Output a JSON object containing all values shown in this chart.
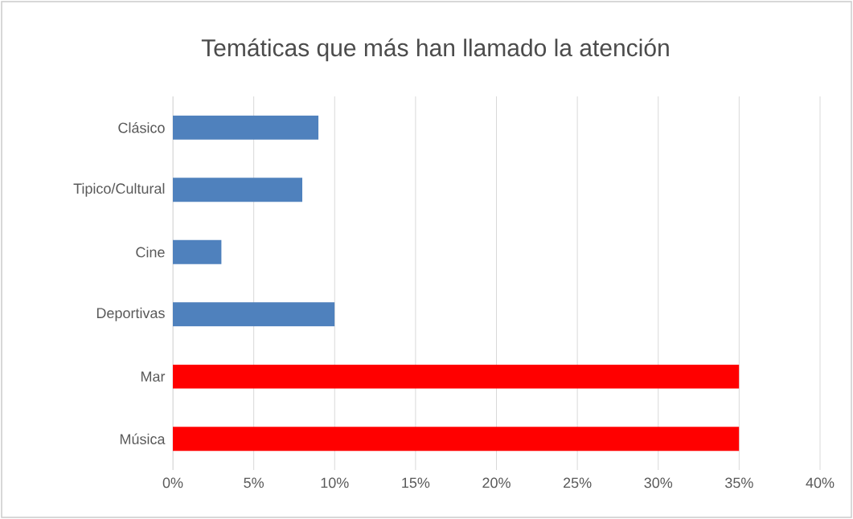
{
  "chart_data": {
    "type": "bar",
    "orientation": "horizontal",
    "title": "Temáticas que más han llamado la atención",
    "categories": [
      "Clásico",
      "Tipico/Cultural",
      "Cine",
      "Deportivas",
      "Mar",
      "Música"
    ],
    "values": [
      9,
      8,
      3,
      10,
      35,
      35
    ],
    "colors": [
      "#4f81bd",
      "#4f81bd",
      "#4f81bd",
      "#4f81bd",
      "#ff0000",
      "#ff0000"
    ],
    "xlim": [
      0,
      40
    ],
    "xticks": [
      {
        "value": 0,
        "label": "0%"
      },
      {
        "value": 5,
        "label": "5%"
      },
      {
        "value": 10,
        "label": "10%"
      },
      {
        "value": 15,
        "label": "15%"
      },
      {
        "value": 20,
        "label": "20%"
      },
      {
        "value": 25,
        "label": "25%"
      },
      {
        "value": 30,
        "label": "30%"
      },
      {
        "value": 35,
        "label": "35%"
      },
      {
        "value": 40,
        "label": "40%"
      }
    ],
    "grid": "x"
  }
}
